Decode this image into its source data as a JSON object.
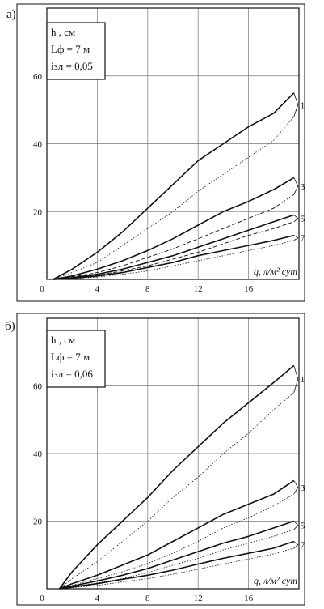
{
  "chart_data": [
    {
      "panel_label": "а)",
      "type": "line",
      "xlabel": "q, л/м² сут",
      "ylabel": "",
      "xlim": [
        0,
        20
      ],
      "ylim": [
        0,
        80
      ],
      "x_ticks": [
        "0",
        "4",
        "8",
        "12",
        "16"
      ],
      "y_ticks": [
        "20",
        "40",
        "60"
      ],
      "grid": true,
      "legend_lines": [
        "h , см",
        "Lф = 7 м",
        "iзл = 0,05"
      ],
      "series": [
        {
          "name": "1",
          "style": "thick",
          "x": [
            0.5,
            2,
            4,
            6,
            8,
            10,
            12,
            14,
            16,
            18,
            19.6
          ],
          "y": [
            0,
            3,
            8,
            14,
            21,
            28,
            35,
            40,
            45,
            49,
            55
          ]
        },
        {
          "name": "",
          "style": "dotted",
          "x": [
            0.5,
            2,
            4,
            6,
            8,
            10,
            12,
            14,
            16,
            18,
            19.6
          ],
          "y": [
            0,
            2,
            5,
            10,
            15,
            20,
            26,
            31,
            36,
            41,
            48
          ]
        },
        {
          "name": "3",
          "style": "thick",
          "x": [
            0.5,
            2,
            4,
            6,
            8,
            10,
            12,
            14,
            16,
            18,
            19.6
          ],
          "y": [
            0,
            1,
            3,
            5.5,
            8.5,
            12,
            16,
            20,
            23,
            26.5,
            30
          ]
        },
        {
          "name": "",
          "style": "dashed",
          "x": [
            0.5,
            2,
            4,
            6,
            8,
            10,
            12,
            14,
            16,
            18,
            19.6
          ],
          "y": [
            0,
            0.7,
            2,
            4,
            6.5,
            9,
            12,
            15,
            18,
            21,
            25
          ]
        },
        {
          "name": "5",
          "style": "thick",
          "x": [
            0.5,
            2,
            4,
            6,
            8,
            10,
            12,
            14,
            16,
            18,
            19.6
          ],
          "y": [
            0,
            0.5,
            1.5,
            3,
            5,
            7,
            9.5,
            12,
            14.5,
            17,
            19
          ]
        },
        {
          "name": "",
          "style": "dashed",
          "x": [
            0.5,
            2,
            4,
            6,
            8,
            10,
            12,
            14,
            16,
            18,
            19.6
          ],
          "y": [
            0,
            0.4,
            1.2,
            2.5,
            4,
            6,
            8,
            10.5,
            13,
            15,
            17
          ]
        },
        {
          "name": "7",
          "style": "thick",
          "x": [
            0.5,
            2,
            4,
            6,
            8,
            10,
            12,
            14,
            16,
            18,
            19.6
          ],
          "y": [
            0,
            0.3,
            1,
            2,
            3.5,
            5,
            7,
            8.5,
            10,
            11.5,
            13
          ]
        },
        {
          "name": "",
          "style": "dotted",
          "x": [
            0.5,
            2,
            4,
            6,
            8,
            10,
            12,
            14,
            16,
            18,
            19.6
          ],
          "y": [
            0,
            0.2,
            0.7,
            1.5,
            2.5,
            4,
            5.5,
            7,
            8.5,
            10,
            11.5
          ]
        }
      ]
    },
    {
      "panel_label": "б)",
      "type": "line",
      "xlabel": "q, л/м² сут",
      "ylabel": "",
      "xlim": [
        0,
        20
      ],
      "ylim": [
        0,
        80
      ],
      "x_ticks": [
        "0",
        "4",
        "8",
        "12",
        "16"
      ],
      "y_ticks": [
        "20",
        "40",
        "60"
      ],
      "grid": true,
      "legend_lines": [
        "h , см",
        "Lф = 7 м",
        "iзл = 0,06"
      ],
      "series": [
        {
          "name": "1",
          "style": "thick",
          "x": [
            1,
            2,
            4,
            6,
            8,
            10,
            12,
            14,
            16,
            18,
            19.6
          ],
          "y": [
            0,
            5,
            13,
            20,
            27,
            35,
            42,
            49,
            55,
            61,
            66
          ]
        },
        {
          "name": "",
          "style": "dotted",
          "x": [
            1,
            2,
            4,
            6,
            8,
            10,
            12,
            14,
            16,
            18,
            19.6
          ],
          "y": [
            0,
            3,
            8,
            14,
            20,
            27,
            33,
            40,
            46,
            53,
            58
          ]
        },
        {
          "name": "3",
          "style": "thick",
          "x": [
            1,
            2,
            4,
            6,
            8,
            10,
            12,
            14,
            16,
            18,
            19.6
          ],
          "y": [
            0,
            1.5,
            4,
            7,
            10,
            14,
            18,
            22,
            25,
            28,
            32
          ]
        },
        {
          "name": "",
          "style": "dotted",
          "x": [
            1,
            2,
            4,
            6,
            8,
            10,
            12,
            14,
            16,
            18,
            19.6
          ],
          "y": [
            0,
            1,
            3,
            5,
            7.5,
            10.5,
            14,
            18,
            21,
            24.5,
            28
          ]
        },
        {
          "name": "5",
          "style": "thick",
          "x": [
            1,
            2,
            4,
            6,
            8,
            10,
            12,
            14,
            16,
            18,
            19.6
          ],
          "y": [
            0,
            0.8,
            2.3,
            4,
            6,
            8.5,
            11,
            13.5,
            15.5,
            18,
            20
          ]
        },
        {
          "name": "",
          "style": "dotted",
          "x": [
            1,
            2,
            4,
            6,
            8,
            10,
            12,
            14,
            16,
            18,
            19.6
          ],
          "y": [
            0,
            0.5,
            1.7,
            3,
            4.8,
            7,
            9,
            11.5,
            13.5,
            15.5,
            17.5
          ]
        },
        {
          "name": "7",
          "style": "thick",
          "x": [
            1,
            2,
            4,
            6,
            8,
            10,
            12,
            14,
            16,
            18,
            19.6
          ],
          "y": [
            0,
            0.5,
            1.5,
            2.8,
            4,
            5.5,
            7.3,
            9,
            10.5,
            12,
            14
          ]
        },
        {
          "name": "",
          "style": "dotted",
          "x": [
            1,
            2,
            4,
            6,
            8,
            10,
            12,
            14,
            16,
            18,
            19.6
          ],
          "y": [
            0,
            0.3,
            1,
            2,
            3,
            4.3,
            5.8,
            7.3,
            8.8,
            10.3,
            12
          ]
        }
      ]
    }
  ]
}
